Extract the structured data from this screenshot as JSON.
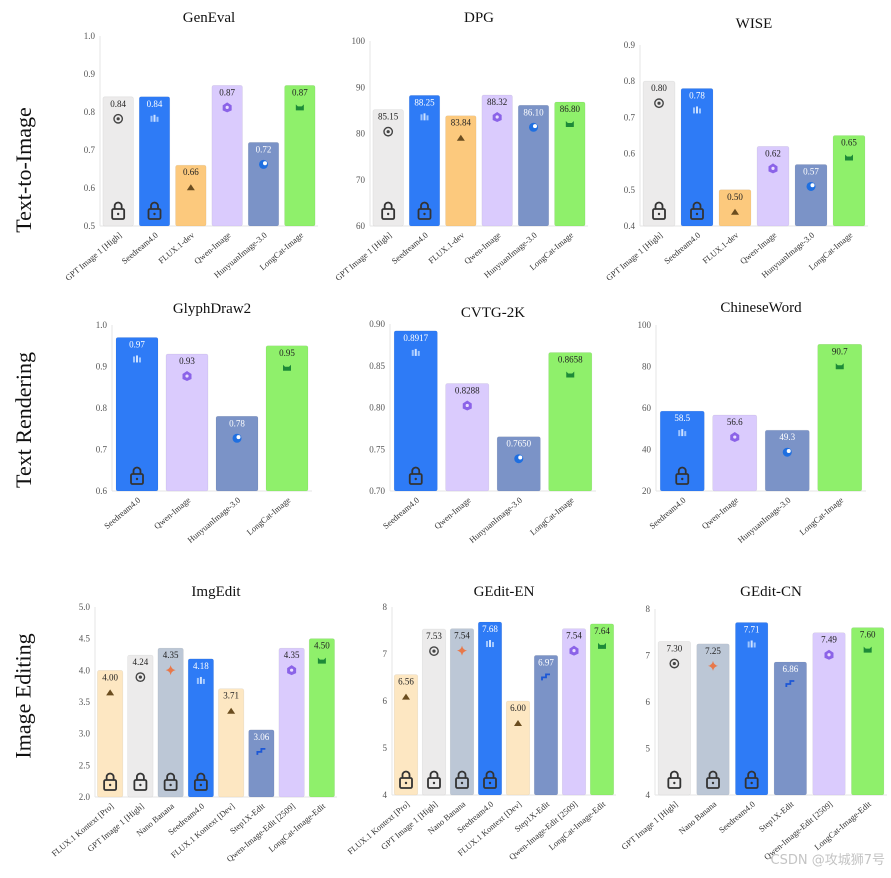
{
  "row_labels": [
    "Text-to-Image",
    "Text Rendering",
    "Image Editing"
  ],
  "watermark": "CSDN @攻城狮7号",
  "colors": {
    "GPT Image 1 [High]": "#ecebeb",
    "Seedream4.0": "#2e7bf6",
    "FLUX.1-dev": "#fcc97d",
    "Qwen-Image": "#dacbfd",
    "HunyuanImage-3.0": "#7b93c7",
    "LongCat-Image": "#8ff06b",
    "FLUX.1 Kontext [Pro]": "#fde7c2",
    "Nano Banana": "#bcc7d6",
    "FLUX.1 Kontext [Dev]": "#fde7c2",
    "Step1X-Edit": "#7b93c7",
    "Qwen-Image-Edit [2509]": "#dacbfd",
    "LongCat-Image-Edit": "#8ff06b"
  },
  "icons": {
    "GPT Image 1 [High]": "openai-icon",
    "Seedream4.0": "bytedance-icon",
    "FLUX.1-dev": "flux-icon",
    "Qwen-Image": "qwen-icon",
    "HunyuanImage-3.0": "hunyuan-icon",
    "LongCat-Image": "longcat-icon",
    "FLUX.1 Kontext [Pro]": "flux-icon",
    "Nano Banana": "gemini-icon",
    "FLUX.1 Kontext [Dev]": "flux-icon",
    "Step1X-Edit": "stepfun-icon",
    "Qwen-Image-Edit [2509]": "qwen-icon",
    "LongCat-Image-Edit": "longcat-icon"
  },
  "chart_data": [
    {
      "type": "bar",
      "title": "GenEval",
      "ylim": [
        0.5,
        1.0
      ],
      "yticks": [
        "0.5",
        "0.6",
        "0.7",
        "0.8",
        "0.9",
        "1.0"
      ],
      "categories": [
        "GPT Image 1 [High]",
        "Seedream4.0",
        "FLUX.1-dev",
        "Qwen-Image",
        "HunyuanImage-3.0",
        "LongCat-Image"
      ],
      "values": [
        0.84,
        0.84,
        0.66,
        0.87,
        0.72,
        0.87
      ],
      "labels": [
        "0.84",
        "0.84",
        "0.66",
        "0.87",
        "0.72",
        "0.87"
      ],
      "closed_source": [
        true,
        true,
        false,
        false,
        false,
        false
      ]
    },
    {
      "type": "bar",
      "title": "DPG",
      "ylim": [
        60,
        100
      ],
      "yticks": [
        "60",
        "70",
        "80",
        "90",
        "100"
      ],
      "categories": [
        "GPT Image 1 [High]",
        "Seedream4.0",
        "FLUX.1-dev",
        "Qwen-Image",
        "HunyuanImage-3.0",
        "LongCat-Image"
      ],
      "values": [
        85.15,
        88.25,
        83.84,
        88.32,
        86.1,
        86.8
      ],
      "labels": [
        "85.15",
        "88.25",
        "83.84",
        "88.32",
        "86.10",
        "86.80"
      ],
      "closed_source": [
        true,
        true,
        false,
        false,
        false,
        false
      ]
    },
    {
      "type": "bar",
      "title": "WISE",
      "ylim": [
        0.4,
        0.9
      ],
      "yticks": [
        "0.4",
        "0.5",
        "0.6",
        "0.7",
        "0.8",
        "0.9"
      ],
      "categories": [
        "GPT Image 1 [High]",
        "Seedream4.0",
        "FLUX.1-dev",
        "Qwen-Image",
        "HunyuanImage-3.0",
        "LongCat-Image"
      ],
      "values": [
        0.8,
        0.78,
        0.5,
        0.62,
        0.57,
        0.65
      ],
      "labels": [
        "0.80",
        "0.78",
        "0.50",
        "0.62",
        "0.57",
        "0.65"
      ],
      "closed_source": [
        true,
        true,
        false,
        false,
        false,
        false
      ]
    },
    {
      "type": "bar",
      "title": "GlyphDraw2",
      "ylim": [
        0.6,
        1.0
      ],
      "yticks": [
        "0.6",
        "0.7",
        "0.8",
        "0.9",
        "1.0"
      ],
      "categories": [
        "Seedream4.0",
        "Qwen-Image",
        "HunyuanImage-3.0",
        "LongCat-Image"
      ],
      "values": [
        0.97,
        0.93,
        0.78,
        0.95
      ],
      "labels": [
        "0.97",
        "0.93",
        "0.78",
        "0.95"
      ],
      "closed_source": [
        true,
        false,
        false,
        false
      ]
    },
    {
      "type": "bar",
      "title": "CVTG-2K",
      "ylim": [
        0.7,
        0.9
      ],
      "yticks": [
        "0.70",
        "0.75",
        "0.80",
        "0.85",
        "0.90"
      ],
      "categories": [
        "Seedream4.0",
        "Qwen-Image",
        "HunyuanImage-3.0",
        "LongCat-Image"
      ],
      "values": [
        0.8917,
        0.8288,
        0.765,
        0.8658
      ],
      "labels": [
        "0.8917",
        "0.8288",
        "0.7650",
        "0.8658"
      ],
      "closed_source": [
        true,
        false,
        false,
        false
      ]
    },
    {
      "type": "bar",
      "title": "ChineseWord",
      "ylim": [
        20,
        100
      ],
      "yticks": [
        "20",
        "40",
        "60",
        "80",
        "100"
      ],
      "categories": [
        "Seedream4.0",
        "Qwen-Image",
        "HunyuanImage-3.0",
        "LongCat-Image"
      ],
      "values": [
        58.5,
        56.6,
        49.3,
        90.7
      ],
      "labels": [
        "58.5",
        "56.6",
        "49.3",
        "90.7"
      ],
      "closed_source": [
        true,
        false,
        false,
        false
      ]
    },
    {
      "type": "bar",
      "title": "ImgEdit",
      "ylim": [
        2.0,
        5.0
      ],
      "yticks": [
        "2.0",
        "2.5",
        "3.0",
        "3.5",
        "4.0",
        "4.5",
        "5.0"
      ],
      "categories": [
        "FLUX.1 Kontext [Pro]",
        "GPT Image 1 [High]",
        "Nano Banana",
        "Seedream4.0",
        "FLUX.1 Kontext [Dev]",
        "Step1X-Edit",
        "Qwen-Image-Edit [2509]",
        "LongCat-Image-Edit"
      ],
      "values": [
        4.0,
        4.24,
        4.35,
        4.18,
        3.71,
        3.06,
        4.35,
        4.5
      ],
      "labels": [
        "4.00",
        "4.24",
        "4.35",
        "4.18",
        "3.71",
        "3.06",
        "4.35",
        "4.50"
      ],
      "closed_source": [
        true,
        true,
        true,
        true,
        false,
        false,
        false,
        false
      ]
    },
    {
      "type": "bar",
      "title": "GEdit-EN",
      "ylim": [
        4,
        8
      ],
      "yticks": [
        "4",
        "5",
        "6",
        "7",
        "8"
      ],
      "categories": [
        "FLUX.1 Kontext [Pro]",
        "GPT Image 1 [High]",
        "Nano Banana",
        "Seedream4.0",
        "FLUX.1 Kontext [Dev]",
        "Step1X-Edit",
        "Qwen-Image-Edit [2509]",
        "LongCat-Image-Edit"
      ],
      "values": [
        6.56,
        7.53,
        7.54,
        7.68,
        6.0,
        6.97,
        7.54,
        7.64
      ],
      "labels": [
        "6.56",
        "7.53",
        "7.54",
        "7.68",
        "6.00",
        "6.97",
        "7.54",
        "7.64"
      ],
      "closed_source": [
        true,
        true,
        true,
        true,
        false,
        false,
        false,
        false
      ]
    },
    {
      "type": "bar",
      "title": "GEdit-CN",
      "ylim": [
        4,
        8
      ],
      "yticks": [
        "4",
        "5",
        "6",
        "7",
        "8"
      ],
      "categories": [
        "GPT Image 1 [High]",
        "Nano Banana",
        "Seedream4.0",
        "Step1X-Edit",
        "Qwen-Image-Edit [2509]",
        "LongCat-Image-Edit"
      ],
      "values": [
        7.3,
        7.25,
        7.71,
        6.86,
        7.49,
        7.6
      ],
      "labels": [
        "7.30",
        "7.25",
        "7.71",
        "6.86",
        "7.49",
        "7.60"
      ],
      "closed_source": [
        true,
        true,
        true,
        false,
        false,
        false
      ]
    }
  ]
}
